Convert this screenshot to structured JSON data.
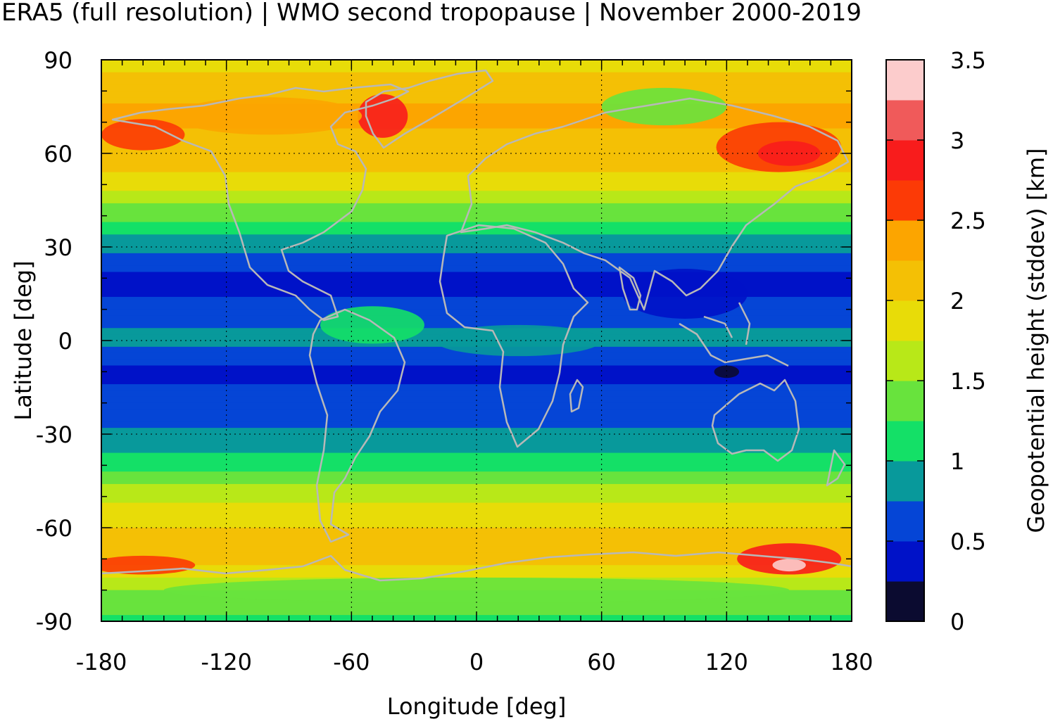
{
  "chart_data": {
    "type": "heatmap",
    "title": "ERA5 (full resolution) | WMO second tropopause | November 2000-2019",
    "xlabel": "Longitude [deg]",
    "ylabel": "Latitude [deg]",
    "colorbar_label": "Geopotential height (stddev) [km]",
    "xlim": [
      -180,
      180
    ],
    "ylim": [
      -90,
      90
    ],
    "xticks": [
      -180,
      -120,
      -60,
      0,
      60,
      120,
      180
    ],
    "yticks": [
      90,
      60,
      30,
      0,
      -30,
      -60,
      -90
    ],
    "xtick_labels": [
      "-180",
      "-120",
      "-60",
      "0",
      "60",
      "120",
      "180"
    ],
    "ytick_labels": [
      "90",
      "60",
      "30",
      "0",
      "-30",
      "-60",
      "-90"
    ],
    "grid": true,
    "colorbar": {
      "range": [
        0,
        3.5
      ],
      "ticks": [
        0,
        0.5,
        1,
        1.5,
        2,
        2.5,
        3,
        3.5
      ],
      "tick_labels": [
        "0",
        "0.5",
        "1",
        "1.5",
        "2",
        "2.5",
        "3",
        "3.5"
      ],
      "levels": [
        {
          "from": 0.0,
          "to": 0.25,
          "color": "#0b0b30"
        },
        {
          "from": 0.25,
          "to": 0.5,
          "color": "#0012c8"
        },
        {
          "from": 0.5,
          "to": 0.75,
          "color": "#0545d6"
        },
        {
          "from": 0.75,
          "to": 1.0,
          "color": "#08999b"
        },
        {
          "from": 1.0,
          "to": 1.25,
          "color": "#14e067"
        },
        {
          "from": 1.25,
          "to": 1.5,
          "color": "#68e33d"
        },
        {
          "from": 1.5,
          "to": 1.75,
          "color": "#b8e818"
        },
        {
          "from": 1.75,
          "to": 2.0,
          "color": "#e8dc08"
        },
        {
          "from": 2.0,
          "to": 2.25,
          "color": "#f4c005"
        },
        {
          "from": 2.25,
          "to": 2.5,
          "color": "#fca500"
        },
        {
          "from": 2.5,
          "to": 2.75,
          "color": "#fc3a06"
        },
        {
          "from": 2.75,
          "to": 3.0,
          "color": "#f81c1c"
        },
        {
          "from": 3.0,
          "to": 3.25,
          "color": "#f05a5a"
        },
        {
          "from": 3.25,
          "to": 3.5,
          "color": "#fccccc"
        }
      ]
    },
    "zonal_stddev_km": [
      {
        "lat": -90,
        "value": 1.2
      },
      {
        "lat": -80,
        "value": 1.5
      },
      {
        "lat": -70,
        "value": 2.2
      },
      {
        "lat": -60,
        "value": 2.0
      },
      {
        "lat": -50,
        "value": 1.7
      },
      {
        "lat": -40,
        "value": 1.1
      },
      {
        "lat": -30,
        "value": 0.8
      },
      {
        "lat": -20,
        "value": 0.55
      },
      {
        "lat": -10,
        "value": 0.45
      },
      {
        "lat": 0,
        "value": 0.85
      },
      {
        "lat": 10,
        "value": 0.55
      },
      {
        "lat": 20,
        "value": 0.4
      },
      {
        "lat": 30,
        "value": 0.8
      },
      {
        "lat": 40,
        "value": 1.3
      },
      {
        "lat": 50,
        "value": 1.9
      },
      {
        "lat": 60,
        "value": 2.1
      },
      {
        "lat": 70,
        "value": 2.3
      },
      {
        "lat": 80,
        "value": 2.2
      },
      {
        "lat": 90,
        "value": 1.8
      }
    ],
    "overlays": {
      "coastlines": true,
      "coastline_color": "#b8b8b8"
    }
  }
}
